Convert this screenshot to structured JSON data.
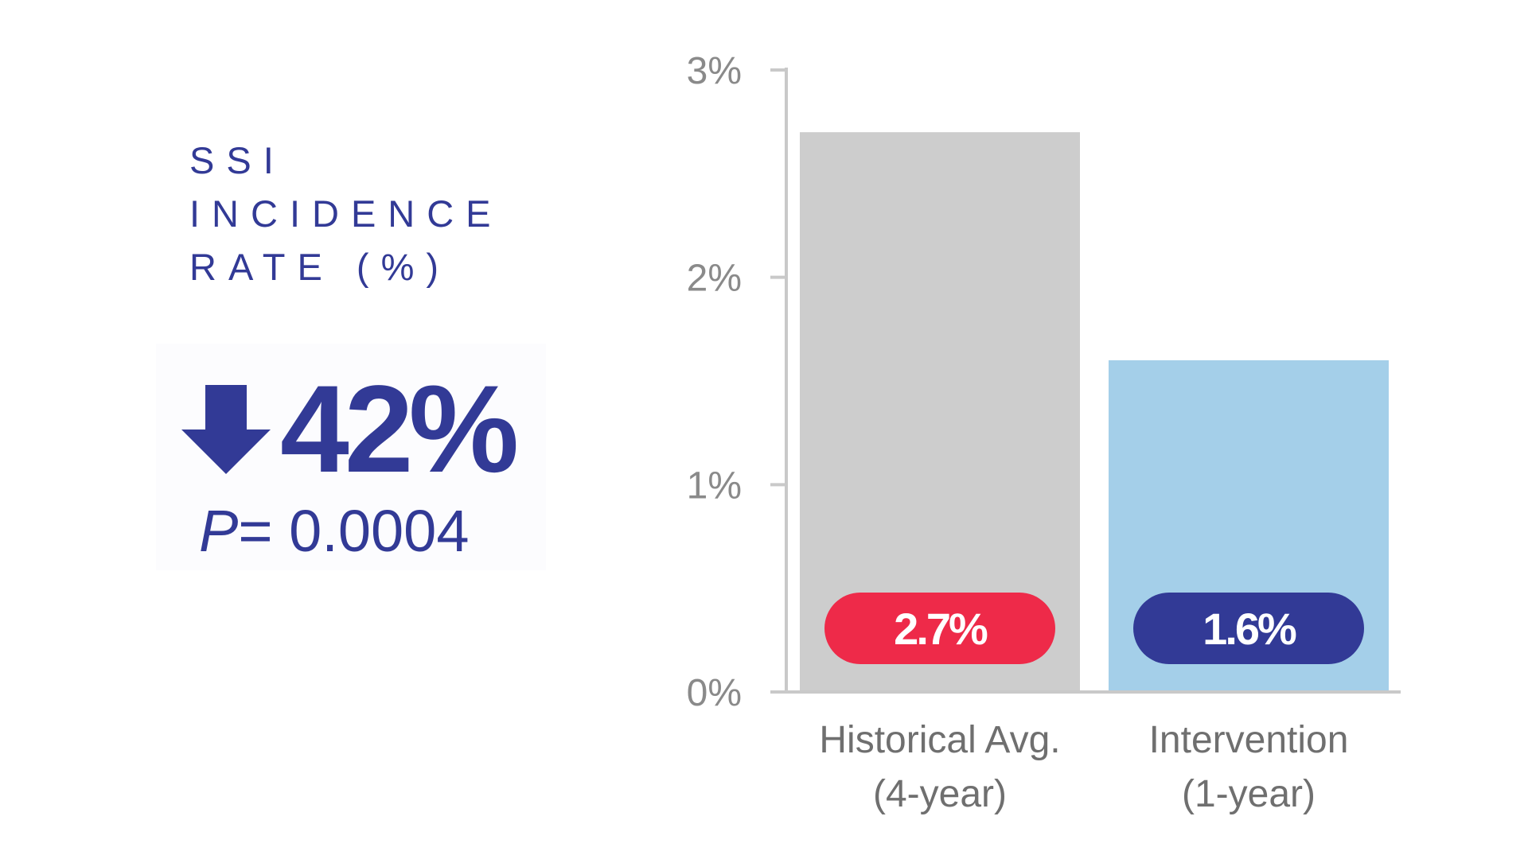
{
  "summary": {
    "title_lines": [
      "SSI",
      "INCIDENCE",
      "RATE (%)"
    ],
    "reduction": "42%",
    "p_label": "P",
    "p_value": "= 0.0004",
    "arrow_icon": "down-arrow-icon"
  },
  "colors": {
    "accent": "#323a96",
    "bar_historical": "#cdcdcd",
    "bar_intervention": "#a4cfe9",
    "label_historical": "#ee2a49",
    "label_intervention": "#323a96",
    "axis": "#c9c9c9"
  },
  "chart_data": {
    "type": "bar",
    "title": "SSI INCIDENCE RATE (%)",
    "xlabel": "",
    "ylabel": "",
    "ylim": [
      0,
      3
    ],
    "yticks": [
      {
        "value": 0,
        "label": "0%"
      },
      {
        "value": 1,
        "label": "1%"
      },
      {
        "value": 2,
        "label": "2%"
      },
      {
        "value": 3,
        "label": "3%"
      }
    ],
    "grid": false,
    "categories": [
      [
        "Historical Avg.",
        "(4-year)"
      ],
      [
        "Intervention",
        "(1-year)"
      ]
    ],
    "values": [
      2.7,
      1.6
    ],
    "data_labels": [
      "2.7%",
      "1.6%"
    ]
  }
}
